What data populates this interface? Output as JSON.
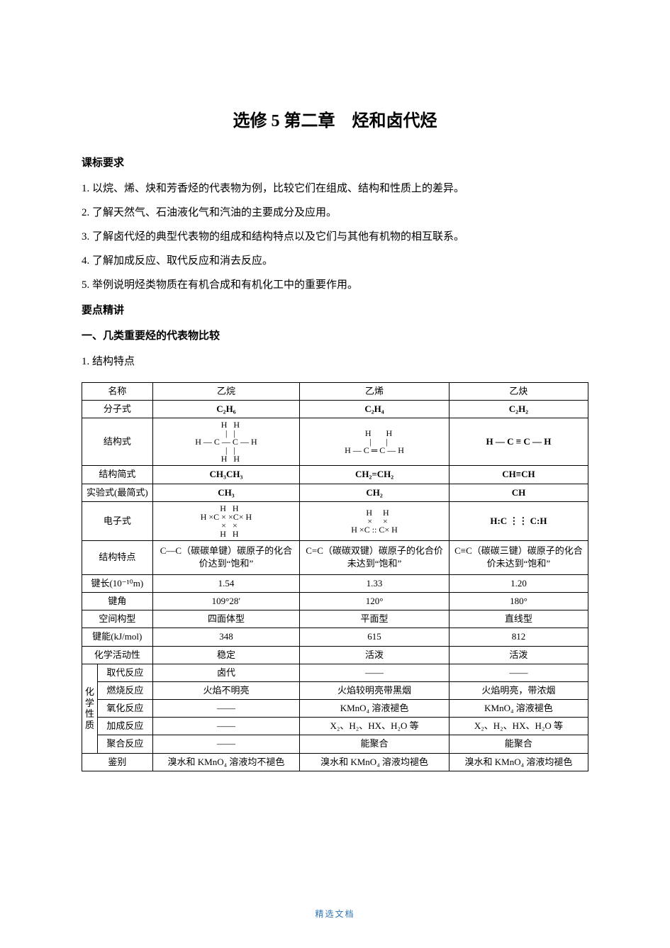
{
  "title": "选修 5 第二章　烃和卤代烃",
  "heading_requirements": "课标要求",
  "requirements": [
    "1. 以烷、烯、炔和芳香烃的代表物为例，比较它们在组成、结构和性质上的差异。",
    "2. 了解天然气、石油液化气和汽油的主要成分及应用。",
    "3. 了解卤代烃的典型代表物的组成和结构特点以及它们与其他有机物的相互联系。",
    "4. 了解加成反应、取代反应和消去反应。",
    "5. 举例说明烃类物质在有机合成和有机化工中的重要作用。"
  ],
  "heading_keypoints": "要点精讲",
  "heading_section1": "一、几类重要烃的代表物比较",
  "heading_sub1": "1. 结构特点",
  "table": {
    "col_headers": [
      "名称",
      "乙烷",
      "乙烯",
      "乙炔"
    ],
    "rows": {
      "molecular": {
        "label": "分子式",
        "vals": [
          "C₂H₆",
          "C₂H₄",
          "C₂H₂"
        ]
      },
      "structural": {
        "label": "结构式",
        "vals": [
          "ethane-structure",
          "ethene-structure",
          "H — C ≡ C — H"
        ]
      },
      "condensed": {
        "label": "结构简式",
        "vals": [
          "CH₃CH₃",
          "CH₂=CH₂",
          "CH≡CH"
        ]
      },
      "empirical": {
        "label": "实验式(最简式)",
        "vals": [
          "CH₃",
          "CH₂",
          "CH"
        ]
      },
      "electron": {
        "label": "电子式",
        "vals": [
          "ethane-electron",
          "ethene-electron",
          "H:C ⋮⋮ C:H"
        ]
      },
      "feature": {
        "label": "结构特点",
        "vals": [
          "C—C（碳碳单键）碳原子的化合价达到“饱和”",
          "C=C（碳碳双键）碳原子的化合价未达到“饱和”",
          "C≡C（碳碳三键）碳原子的化合价未达到“饱和”"
        ]
      },
      "bondlen": {
        "label": "键长(10⁻¹⁰m)",
        "vals": [
          "1.54",
          "1.33",
          "1.20"
        ]
      },
      "bondangle": {
        "label": "键角",
        "vals": [
          "109°28′",
          "120°",
          "180°"
        ]
      },
      "geometry": {
        "label": "空间构型",
        "vals": [
          "四面体型",
          "平面型",
          "直线型"
        ]
      },
      "bondenergy": {
        "label": "键能(kJ/mol)",
        "vals": [
          "348",
          "615",
          "812"
        ]
      },
      "activity": {
        "label": "化学活动性",
        "vals": [
          "稳定",
          "活泼",
          "活泼"
        ]
      },
      "chemgroup": "化学性质",
      "substitution": {
        "label": "取代反应",
        "vals": [
          "卤代",
          "——",
          "——"
        ]
      },
      "combustion": {
        "label": "燃烧反应",
        "vals": [
          "火焰不明亮",
          "火焰较明亮带黑烟",
          "火焰明亮，带浓烟"
        ]
      },
      "oxidation": {
        "label": "氧化反应",
        "vals": [
          "——",
          "KMnO₄ 溶液褪色",
          "KMnO₄ 溶液褪色"
        ]
      },
      "addition": {
        "label": "加成反应",
        "vals": [
          "——",
          "X₂、H₂、HX、H₂O 等",
          "X₂、H₂、HX、H₂O 等"
        ]
      },
      "polymer": {
        "label": "聚合反应",
        "vals": [
          "——",
          "能聚合",
          "能聚合"
        ]
      },
      "identify": {
        "label": "鉴别",
        "vals": [
          "溴水和 KMnO₄ 溶液均不褪色",
          "溴水和 KMnO₄ 溶液均褪色",
          "溴水和 KMnO₄ 溶液均褪色"
        ]
      }
    }
  },
  "footer": "精选文档"
}
